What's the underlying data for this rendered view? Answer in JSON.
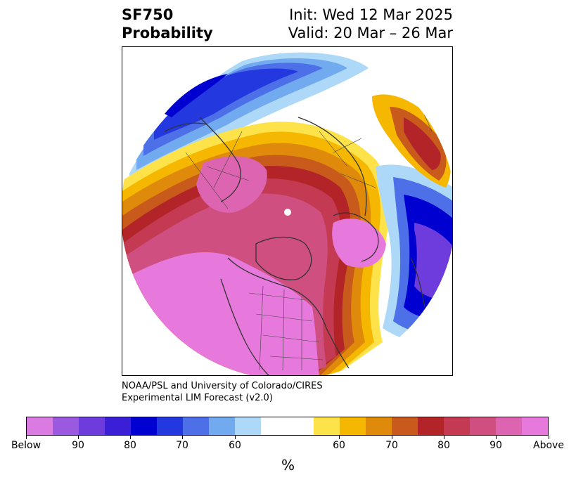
{
  "header": {
    "title_line1": "SF750",
    "title_line2": "Probability",
    "init_line": "Init: Wed 12 Mar 2025",
    "valid_line": "Valid: 20 Mar – 26 Mar"
  },
  "credit": {
    "line1": "NOAA/PSL and University of Colorado/CIRES",
    "line2": "Experimental LIM Forecast (v2.0)"
  },
  "colorbar": {
    "unit": "%",
    "colors": [
      "#d97be0",
      "#9b59e0",
      "#6e3bdc",
      "#3a1fd6",
      "#0000d0",
      "#2438df",
      "#4d70e8",
      "#72aaf0",
      "#aed8f8",
      "#ffffff",
      "#ffffff",
      "#fde24a",
      "#f5b700",
      "#e08a0c",
      "#c85a1c",
      "#b32428",
      "#c33a52",
      "#cf4f80",
      "#dc64b0",
      "#e879dc"
    ],
    "tick_labels": [
      "Below",
      "90",
      "80",
      "70",
      "60",
      "60",
      "70",
      "80",
      "90",
      "Above"
    ]
  },
  "legend_colors": {
    "below_high": "#d97be0",
    "below_low": "#aed8f8",
    "above_low": "#fde24a",
    "above_high": "#e879dc"
  }
}
